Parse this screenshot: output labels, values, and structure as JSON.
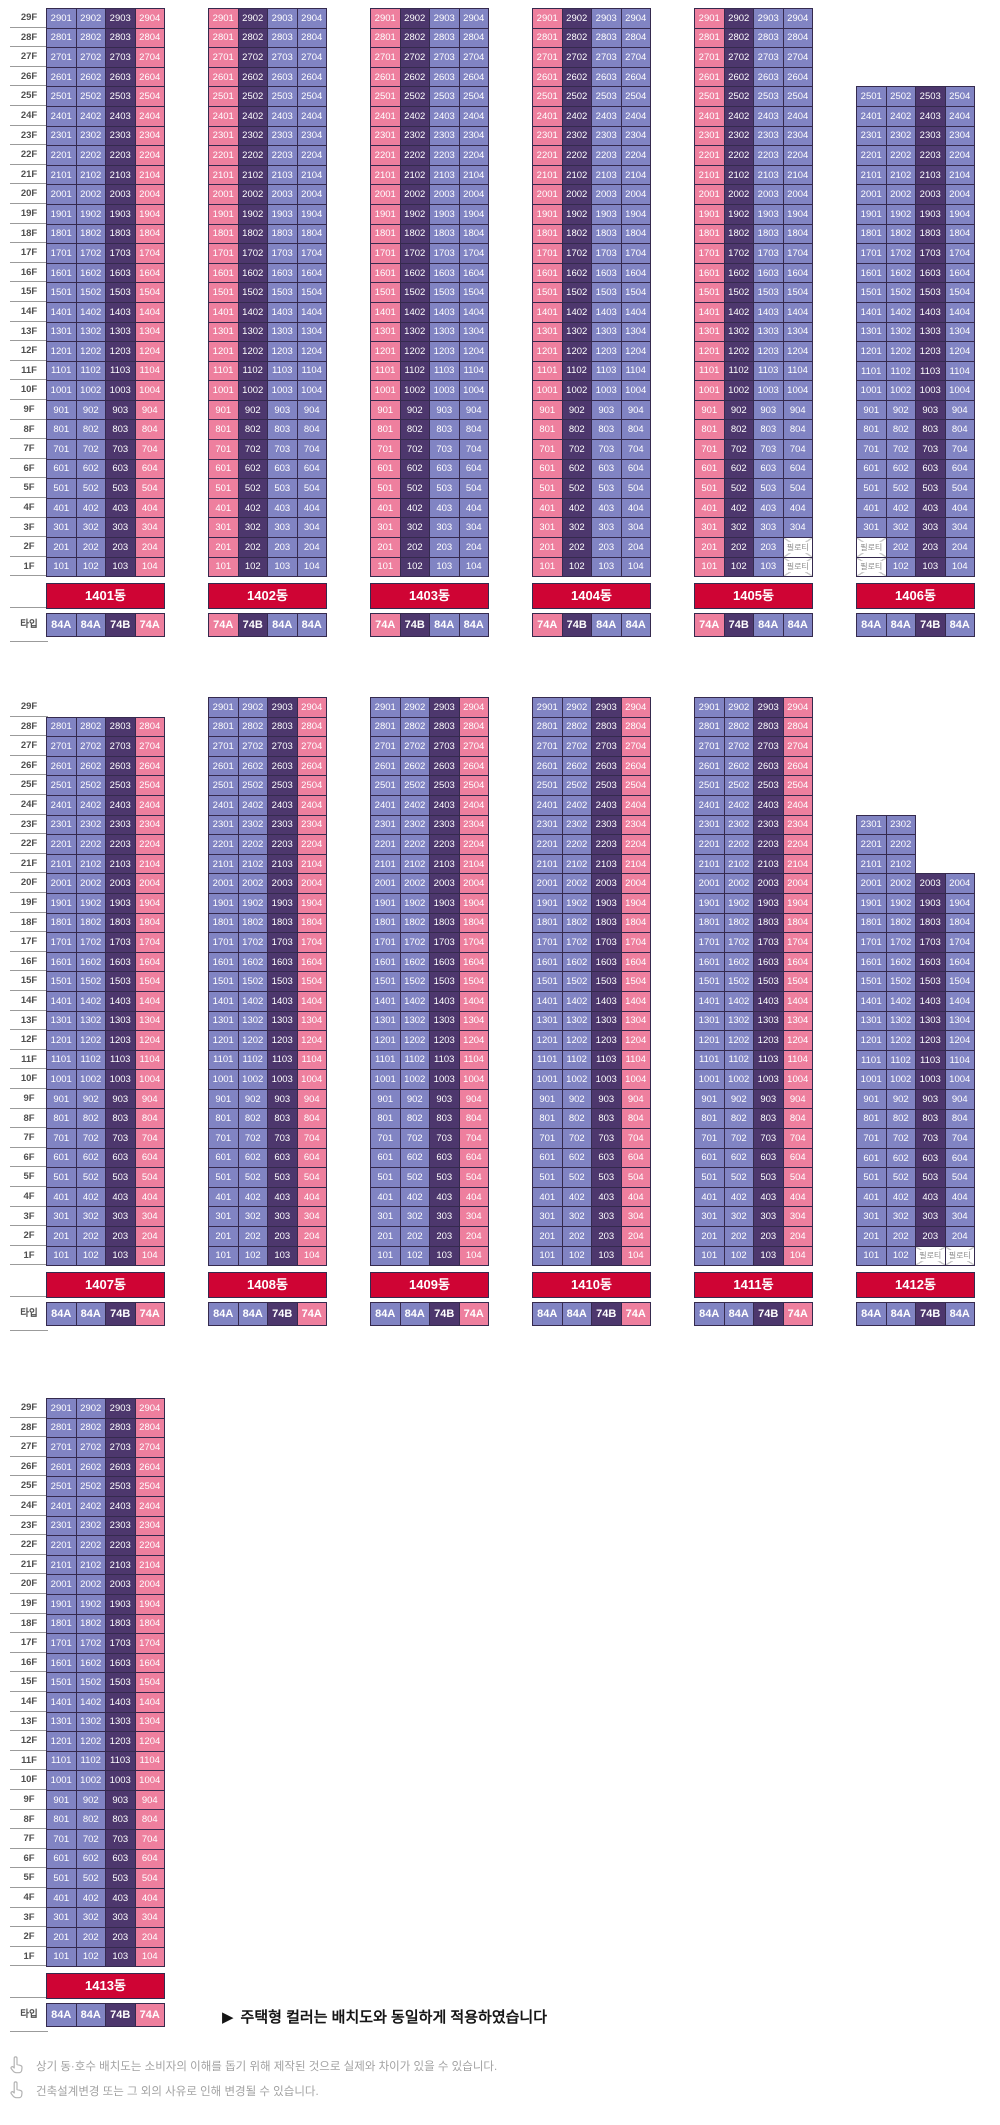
{
  "colors": {
    "types": {
      "84A": "#8184c3",
      "74B": "#4d376d",
      "74A": "#ee7f9e"
    },
    "banner_bg": "#cf0434",
    "banner_text": "#ffffff",
    "cell_text": "#ffffff",
    "grid_line": "#352a4e",
    "piloti_bg": "#ffffff",
    "piloti_text": "#8a8a8a",
    "axis_text": "#4f4f4f",
    "axis_line": "#9b9b9b",
    "annotation_text": "#151515",
    "note_text": "#a2a2a2"
  },
  "icons": {
    "annotation_marker": "triangle-right-icon",
    "note_bullet": "hand-pointing-up-icon"
  },
  "labels": {
    "type_row": "타입",
    "piloti": "필로티"
  },
  "floor_labels": [
    "29F",
    "28F",
    "27F",
    "26F",
    "25F",
    "24F",
    "23F",
    "22F",
    "21F",
    "20F",
    "19F",
    "18F",
    "17F",
    "16F",
    "15F",
    "14F",
    "13F",
    "12F",
    "11F",
    "10F",
    "9F",
    "8F",
    "7F",
    "6F",
    "5F",
    "4F",
    "3F",
    "2F",
    "1F"
  ],
  "unit_number_rule": "unit = floor*100 + column (e.g. floor 29 col 1 -> 2901)",
  "sections": [
    {
      "name": "section-1",
      "buildings": [
        {
          "name": "1401동",
          "types": [
            "84A",
            "84A",
            "74B",
            "74A"
          ],
          "top_floor": 29
        },
        {
          "name": "1402동",
          "types": [
            "74A",
            "74B",
            "84A",
            "84A"
          ],
          "top_floor": 29
        },
        {
          "name": "1403동",
          "types": [
            "74A",
            "74B",
            "84A",
            "84A"
          ],
          "top_floor": 29
        },
        {
          "name": "1404동",
          "types": [
            "74A",
            "74B",
            "84A",
            "84A"
          ],
          "top_floor": 29
        },
        {
          "name": "1405동",
          "types": [
            "74A",
            "74B",
            "84A",
            "84A"
          ],
          "top_floor": 29,
          "piloti": [
            [
              2,
              4
            ],
            [
              1,
              4
            ]
          ]
        },
        {
          "name": "1406동",
          "types": [
            "84A",
            "84A",
            "74B",
            "84A"
          ],
          "top_floor": 25,
          "piloti": [
            [
              2,
              1
            ],
            [
              1,
              1
            ]
          ]
        }
      ]
    },
    {
      "name": "section-2",
      "buildings": [
        {
          "name": "1407동",
          "types": [
            "84A",
            "84A",
            "74B",
            "74A"
          ],
          "top_floor": 28
        },
        {
          "name": "1408동",
          "types": [
            "84A",
            "84A",
            "74B",
            "74A"
          ],
          "top_floor": 29
        },
        {
          "name": "1409동",
          "types": [
            "84A",
            "84A",
            "74B",
            "74A"
          ],
          "top_floor": 29
        },
        {
          "name": "1410동",
          "types": [
            "84A",
            "84A",
            "74B",
            "74A"
          ],
          "top_floor": 29
        },
        {
          "name": "1411동",
          "types": [
            "84A",
            "84A",
            "74B",
            "74A"
          ],
          "top_floor": 29
        },
        {
          "name": "1412동",
          "types": [
            "84A",
            "84A",
            "74B",
            "84A"
          ],
          "top_floor": 23,
          "narrow_cols": 2,
          "narrow_floors": [
            23,
            21
          ],
          "full_top_floor": 20,
          "piloti": [
            [
              1,
              3
            ],
            [
              1,
              4
            ]
          ]
        }
      ]
    },
    {
      "name": "section-3",
      "buildings": [
        {
          "name": "1413동",
          "types": [
            "84A",
            "84A",
            "74B",
            "74A"
          ],
          "top_floor": 29
        }
      ]
    }
  ],
  "annotation": {
    "marker": "▶",
    "text": "주택형 컬러는 배치도와 동일하게 적용하였습니다"
  },
  "notes": [
    "상기 동·호수 배치도는 소비자의 이해를 돕기 위해 제작된 것으로 실제와 차이가 있을 수 있습니다.",
    "건축설계변경 또는 그 외의 사유로 인해 변경될 수 있습니다."
  ]
}
